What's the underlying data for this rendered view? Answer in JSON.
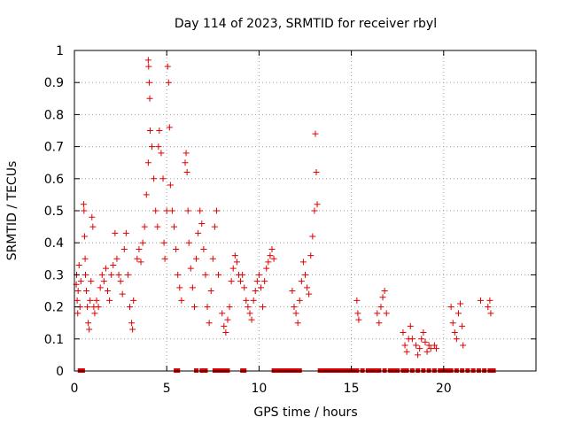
{
  "chart_data": {
    "type": "scatter",
    "title": "Day 114 of 2023, SRMTID for receiver rbyl",
    "xlabel": "GPS time / hours",
    "ylabel": "SRMTID / TECUs",
    "xlim": [
      0,
      25
    ],
    "ylim": [
      0,
      1
    ],
    "xticks": [
      0,
      5,
      10,
      15,
      20
    ],
    "xtick_labels": [
      "0",
      "5",
      "10",
      "15",
      "20"
    ],
    "yticks": [
      0,
      0.1,
      0.2,
      0.3,
      0.4,
      0.5,
      0.6,
      0.7,
      0.8,
      0.9,
      1
    ],
    "ytick_labels": [
      "0",
      "0.1",
      "0.2",
      "0.3",
      "0.4",
      "0.5",
      "0.6",
      "0.7",
      "0.8",
      "0.9",
      "1"
    ],
    "grid": true,
    "marker": "+",
    "series": [
      {
        "name": "SRMTID",
        "color": "#e00000",
        "points": [
          [
            0.1,
            0.27
          ],
          [
            0.12,
            0.3
          ],
          [
            0.15,
            0.22
          ],
          [
            0.18,
            0.18
          ],
          [
            0.2,
            0.25
          ],
          [
            0.25,
            0.33
          ],
          [
            0.3,
            0.2
          ],
          [
            0.35,
            0.28
          ],
          [
            0.5,
            0.52
          ],
          [
            0.52,
            0.5
          ],
          [
            0.55,
            0.42
          ],
          [
            0.58,
            0.35
          ],
          [
            0.6,
            0.3
          ],
          [
            0.65,
            0.25
          ],
          [
            0.7,
            0.2
          ],
          [
            0.75,
            0.15
          ],
          [
            0.8,
            0.13
          ],
          [
            0.85,
            0.22
          ],
          [
            0.9,
            0.28
          ],
          [
            0.95,
            0.48
          ],
          [
            1.0,
            0.45
          ],
          [
            1.05,
            0.2
          ],
          [
            1.1,
            0.18
          ],
          [
            1.2,
            0.22
          ],
          [
            1.3,
            0.2
          ],
          [
            1.4,
            0.26
          ],
          [
            1.5,
            0.3
          ],
          [
            1.6,
            0.28
          ],
          [
            1.7,
            0.32
          ],
          [
            1.8,
            0.25
          ],
          [
            1.9,
            0.22
          ],
          [
            2.0,
            0.3
          ],
          [
            2.1,
            0.33
          ],
          [
            2.2,
            0.43
          ],
          [
            2.3,
            0.35
          ],
          [
            2.4,
            0.3
          ],
          [
            2.5,
            0.28
          ],
          [
            2.6,
            0.24
          ],
          [
            2.7,
            0.38
          ],
          [
            2.8,
            0.43
          ],
          [
            2.9,
            0.3
          ],
          [
            3.0,
            0.2
          ],
          [
            3.1,
            0.15
          ],
          [
            3.15,
            0.13
          ],
          [
            3.2,
            0.22
          ],
          [
            3.4,
            0.35
          ],
          [
            3.5,
            0.38
          ],
          [
            3.6,
            0.34
          ],
          [
            3.7,
            0.4
          ],
          [
            3.8,
            0.45
          ],
          [
            3.9,
            0.55
          ],
          [
            4.0,
            0.65
          ],
          [
            4.0,
            0.97
          ],
          [
            4.02,
            0.95
          ],
          [
            4.05,
            0.9
          ],
          [
            4.08,
            0.85
          ],
          [
            4.1,
            0.75
          ],
          [
            4.2,
            0.7
          ],
          [
            4.3,
            0.6
          ],
          [
            4.4,
            0.5
          ],
          [
            4.5,
            0.45
          ],
          [
            4.55,
            0.7
          ],
          [
            4.6,
            0.75
          ],
          [
            4.7,
            0.68
          ],
          [
            4.8,
            0.6
          ],
          [
            4.85,
            0.4
          ],
          [
            4.9,
            0.35
          ],
          [
            5.0,
            0.5
          ],
          [
            5.05,
            0.95
          ],
          [
            5.1,
            0.9
          ],
          [
            5.15,
            0.76
          ],
          [
            5.2,
            0.58
          ],
          [
            5.3,
            0.5
          ],
          [
            5.4,
            0.45
          ],
          [
            5.5,
            0.38
          ],
          [
            5.6,
            0.3
          ],
          [
            5.7,
            0.26
          ],
          [
            5.8,
            0.22
          ],
          [
            6.0,
            0.65
          ],
          [
            6.05,
            0.68
          ],
          [
            6.1,
            0.62
          ],
          [
            6.15,
            0.5
          ],
          [
            6.2,
            0.4
          ],
          [
            6.3,
            0.32
          ],
          [
            6.4,
            0.26
          ],
          [
            6.5,
            0.2
          ],
          [
            6.6,
            0.35
          ],
          [
            6.7,
            0.43
          ],
          [
            6.8,
            0.5
          ],
          [
            6.9,
            0.46
          ],
          [
            7.0,
            0.38
          ],
          [
            7.1,
            0.3
          ],
          [
            7.2,
            0.2
          ],
          [
            7.3,
            0.15
          ],
          [
            7.4,
            0.25
          ],
          [
            7.5,
            0.35
          ],
          [
            7.6,
            0.45
          ],
          [
            7.7,
            0.5
          ],
          [
            7.8,
            0.3
          ],
          [
            8.0,
            0.18
          ],
          [
            8.1,
            0.14
          ],
          [
            8.2,
            0.12
          ],
          [
            8.3,
            0.16
          ],
          [
            8.4,
            0.2
          ],
          [
            8.5,
            0.28
          ],
          [
            8.6,
            0.32
          ],
          [
            8.7,
            0.36
          ],
          [
            8.8,
            0.34
          ],
          [
            8.9,
            0.3
          ],
          [
            9.0,
            0.28
          ],
          [
            9.1,
            0.3
          ],
          [
            9.2,
            0.26
          ],
          [
            9.3,
            0.22
          ],
          [
            9.4,
            0.2
          ],
          [
            9.5,
            0.18
          ],
          [
            9.6,
            0.16
          ],
          [
            9.7,
            0.22
          ],
          [
            9.8,
            0.25
          ],
          [
            9.9,
            0.28
          ],
          [
            10.0,
            0.3
          ],
          [
            10.1,
            0.26
          ],
          [
            10.2,
            0.2
          ],
          [
            10.3,
            0.28
          ],
          [
            10.4,
            0.32
          ],
          [
            10.5,
            0.34
          ],
          [
            10.6,
            0.36
          ],
          [
            10.7,
            0.38
          ],
          [
            10.8,
            0.35
          ],
          [
            11.8,
            0.25
          ],
          [
            11.9,
            0.2
          ],
          [
            12.0,
            0.18
          ],
          [
            12.1,
            0.15
          ],
          [
            12.2,
            0.22
          ],
          [
            12.3,
            0.28
          ],
          [
            12.4,
            0.34
          ],
          [
            12.5,
            0.3
          ],
          [
            12.6,
            0.26
          ],
          [
            12.7,
            0.24
          ],
          [
            12.8,
            0.36
          ],
          [
            12.9,
            0.42
          ],
          [
            13.0,
            0.5
          ],
          [
            13.05,
            0.74
          ],
          [
            13.1,
            0.62
          ],
          [
            13.15,
            0.52
          ],
          [
            15.3,
            0.22
          ],
          [
            15.35,
            0.18
          ],
          [
            15.4,
            0.16
          ],
          [
            16.4,
            0.18
          ],
          [
            16.5,
            0.15
          ],
          [
            16.6,
            0.2
          ],
          [
            16.7,
            0.23
          ],
          [
            16.8,
            0.25
          ],
          [
            16.9,
            0.18
          ],
          [
            17.8,
            0.12
          ],
          [
            17.9,
            0.08
          ],
          [
            18.0,
            0.06
          ],
          [
            18.1,
            0.1
          ],
          [
            18.2,
            0.14
          ],
          [
            18.3,
            0.1
          ],
          [
            18.5,
            0.08
          ],
          [
            18.6,
            0.05
          ],
          [
            18.7,
            0.07
          ],
          [
            18.8,
            0.1
          ],
          [
            18.9,
            0.12
          ],
          [
            19.0,
            0.09
          ],
          [
            19.1,
            0.06
          ],
          [
            19.2,
            0.08
          ],
          [
            19.3,
            0.07
          ],
          [
            19.5,
            0.08
          ],
          [
            19.6,
            0.07
          ],
          [
            20.4,
            0.2
          ],
          [
            20.5,
            0.15
          ],
          [
            20.6,
            0.12
          ],
          [
            20.7,
            0.1
          ],
          [
            20.8,
            0.18
          ],
          [
            20.9,
            0.21
          ],
          [
            21.0,
            0.14
          ],
          [
            21.05,
            0.08
          ],
          [
            22.0,
            0.22
          ],
          [
            22.4,
            0.2
          ],
          [
            22.5,
            0.22
          ],
          [
            22.55,
            0.18
          ]
        ],
        "zero_marks": [
          0.3,
          0.45,
          5.5,
          5.6,
          6.6,
          6.9,
          7.1,
          7.6,
          7.8,
          8.0,
          8.1,
          8.3,
          9.1,
          9.2,
          10.8,
          11.0,
          11.2,
          11.4,
          11.6,
          11.8,
          12.0,
          12.2,
          13.3,
          13.5,
          13.7,
          13.9,
          14.1,
          14.3,
          14.5,
          14.7,
          14.9,
          15.1,
          15.3,
          15.6,
          15.9,
          16.1,
          16.3,
          16.5,
          16.8,
          17.1,
          17.3,
          17.5,
          17.8,
          18.0,
          18.3,
          18.6,
          18.9,
          19.2,
          19.5,
          19.8,
          20.0,
          20.2,
          20.4,
          20.7,
          21.0,
          21.3,
          21.6,
          21.9,
          22.2,
          22.5,
          22.7
        ]
      }
    ]
  }
}
